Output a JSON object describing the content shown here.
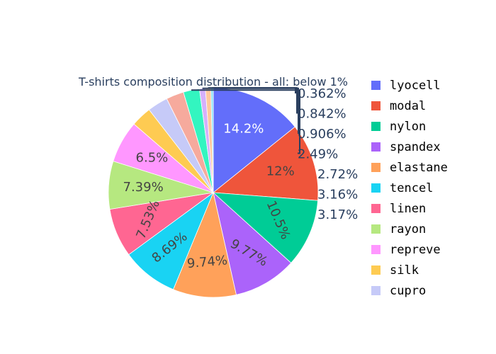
{
  "chart_data": {
    "type": "pie",
    "title": "T-shirts composition distribution - all: below 1%",
    "slices": [
      {
        "label": "lyocell",
        "value": 14.2,
        "text": "14.2%",
        "color": "#636efa"
      },
      {
        "label": "modal",
        "value": 12.0,
        "text": "12%",
        "color": "#EF553B"
      },
      {
        "label": "nylon",
        "value": 10.5,
        "text": "10.5%",
        "color": "#00cc96"
      },
      {
        "label": "spandex",
        "value": 9.77,
        "text": "9.77%",
        "color": "#ab63fa"
      },
      {
        "label": "elastane",
        "value": 9.74,
        "text": "9.74%",
        "color": "#FFA15A"
      },
      {
        "label": "tencel",
        "value": 8.69,
        "text": "8.69%",
        "color": "#19d3f3"
      },
      {
        "label": "linen",
        "value": 7.53,
        "text": "7.53%",
        "color": "#FF6692"
      },
      {
        "label": "rayon",
        "value": 7.39,
        "text": "7.39%",
        "color": "#B6E880"
      },
      {
        "label": "repreve",
        "value": 6.5,
        "text": "6.5%",
        "color": "#FF97FF"
      },
      {
        "label": "silk",
        "value": 3.17,
        "text": "3.17%",
        "color": "#FECB52"
      },
      {
        "label": "cupro",
        "value": 3.16,
        "text": "3.16%",
        "color": "#c6caf8"
      },
      {
        "label": "",
        "value": 2.72,
        "text": "2.72%",
        "color": "#f6aa9d"
      },
      {
        "label": "",
        "value": 2.49,
        "text": "2.49%",
        "color": "#33f5c0"
      },
      {
        "label": "",
        "value": 0.906,
        "text": "0.906%",
        "color": "#d5b0fc"
      },
      {
        "label": "",
        "value": 0.842,
        "text": "0.842%",
        "color": "#ffc89c"
      },
      {
        "label": "",
        "value": 0.362,
        "text": "0.362%",
        "color": "#8be4f8"
      }
    ],
    "legend": [
      "lyocell",
      "modal",
      "nylon",
      "spandex",
      "elastane",
      "tencel",
      "linen",
      "rayon",
      "repreve",
      "silk",
      "cupro"
    ],
    "legend_position": "right",
    "direction": "clockwise",
    "start": "top"
  }
}
